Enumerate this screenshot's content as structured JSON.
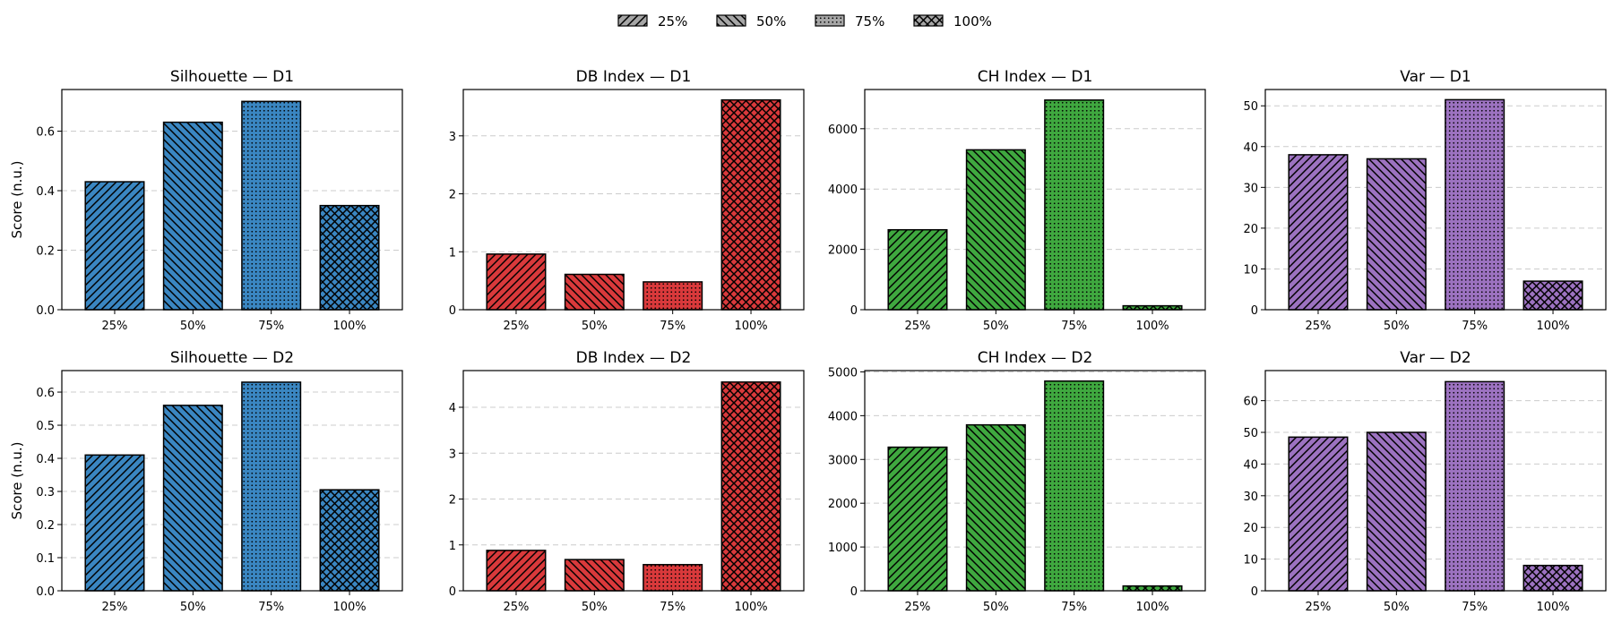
{
  "legend": {
    "entries": [
      "25%",
      "50%",
      "75%",
      "100%"
    ],
    "hatches": [
      "diag-up",
      "diag-down",
      "dots",
      "cross"
    ],
    "swatch_color": "#a6a6a6"
  },
  "chart_data": [
    {
      "type": "bar",
      "title": "Silhouette — D1",
      "xlabel": "",
      "ylabel": "Score (n.u.)",
      "categories": [
        "25%",
        "50%",
        "75%",
        "100%"
      ],
      "values": [
        0.43,
        0.63,
        0.7,
        0.35
      ],
      "ylim": [
        0,
        0.74
      ],
      "yticks": [
        0.0,
        0.2,
        0.4,
        0.6
      ],
      "tick_labels": [
        "0.0",
        "0.2",
        "0.4",
        "0.6"
      ],
      "color": "#3a86c1",
      "grid": "y-dashed"
    },
    {
      "type": "bar",
      "title": "DB Index — D1",
      "xlabel": "",
      "ylabel": "",
      "categories": [
        "25%",
        "50%",
        "75%",
        "100%"
      ],
      "values": [
        0.96,
        0.61,
        0.48,
        3.62
      ],
      "ylim": [
        0,
        3.8
      ],
      "yticks": [
        0,
        1,
        2,
        3
      ],
      "tick_labels": [
        "0",
        "1",
        "2",
        "3"
      ],
      "color": "#d9393b",
      "grid": "y-dashed"
    },
    {
      "type": "bar",
      "title": "CH Index — D1",
      "xlabel": "",
      "ylabel": "",
      "categories": [
        "25%",
        "50%",
        "75%",
        "100%"
      ],
      "values": [
        2650,
        5300,
        6950,
        130
      ],
      "ylim": [
        0,
        7300
      ],
      "yticks": [
        0,
        2000,
        4000,
        6000
      ],
      "tick_labels": [
        "0",
        "2000",
        "4000",
        "6000"
      ],
      "color": "#3fa83f",
      "grid": "y-dashed"
    },
    {
      "type": "bar",
      "title": "Var — D1",
      "xlabel": "",
      "ylabel": "",
      "categories": [
        "25%",
        "50%",
        "75%",
        "100%"
      ],
      "values": [
        38,
        37,
        51.5,
        7
      ],
      "ylim": [
        0,
        54
      ],
      "yticks": [
        0,
        10,
        20,
        30,
        40,
        50
      ],
      "tick_labels": [
        "0",
        "10",
        "20",
        "30",
        "40",
        "50"
      ],
      "color": "#9c72c0",
      "grid": "y-dashed"
    },
    {
      "type": "bar",
      "title": "Silhouette — D2",
      "xlabel": "",
      "ylabel": "Score (n.u.)",
      "categories": [
        "25%",
        "50%",
        "75%",
        "100%"
      ],
      "values": [
        0.41,
        0.56,
        0.63,
        0.305
      ],
      "ylim": [
        0,
        0.665
      ],
      "yticks": [
        0.0,
        0.1,
        0.2,
        0.3,
        0.4,
        0.5,
        0.6
      ],
      "tick_labels": [
        "0.0",
        "0.1",
        "0.2",
        "0.3",
        "0.4",
        "0.5",
        "0.6"
      ],
      "color": "#3a86c1",
      "grid": "y-dashed"
    },
    {
      "type": "bar",
      "title": "DB Index — D2",
      "xlabel": "",
      "ylabel": "",
      "categories": [
        "25%",
        "50%",
        "75%",
        "100%"
      ],
      "values": [
        0.88,
        0.68,
        0.57,
        4.55
      ],
      "ylim": [
        0,
        4.8
      ],
      "yticks": [
        0,
        1,
        2,
        3,
        4
      ],
      "tick_labels": [
        "0",
        "1",
        "2",
        "3",
        "4"
      ],
      "color": "#d9393b",
      "grid": "y-dashed"
    },
    {
      "type": "bar",
      "title": "CH Index — D2",
      "xlabel": "",
      "ylabel": "",
      "categories": [
        "25%",
        "50%",
        "75%",
        "100%"
      ],
      "values": [
        3280,
        3790,
        4790,
        110
      ],
      "ylim": [
        0,
        5030
      ],
      "yticks": [
        0,
        1000,
        2000,
        3000,
        4000,
        5000
      ],
      "tick_labels": [
        "0",
        "1000",
        "2000",
        "3000",
        "4000",
        "5000"
      ],
      "color": "#3fa83f",
      "grid": "y-dashed"
    },
    {
      "type": "bar",
      "title": "Var — D2",
      "xlabel": "",
      "ylabel": "",
      "categories": [
        "25%",
        "50%",
        "75%",
        "100%"
      ],
      "values": [
        48.5,
        50,
        66,
        8
      ],
      "ylim": [
        0,
        69.5
      ],
      "yticks": [
        0,
        10,
        20,
        30,
        40,
        50,
        60
      ],
      "tick_labels": [
        "0",
        "10",
        "20",
        "30",
        "40",
        "50",
        "60"
      ],
      "color": "#9c72c0",
      "grid": "y-dashed"
    }
  ]
}
